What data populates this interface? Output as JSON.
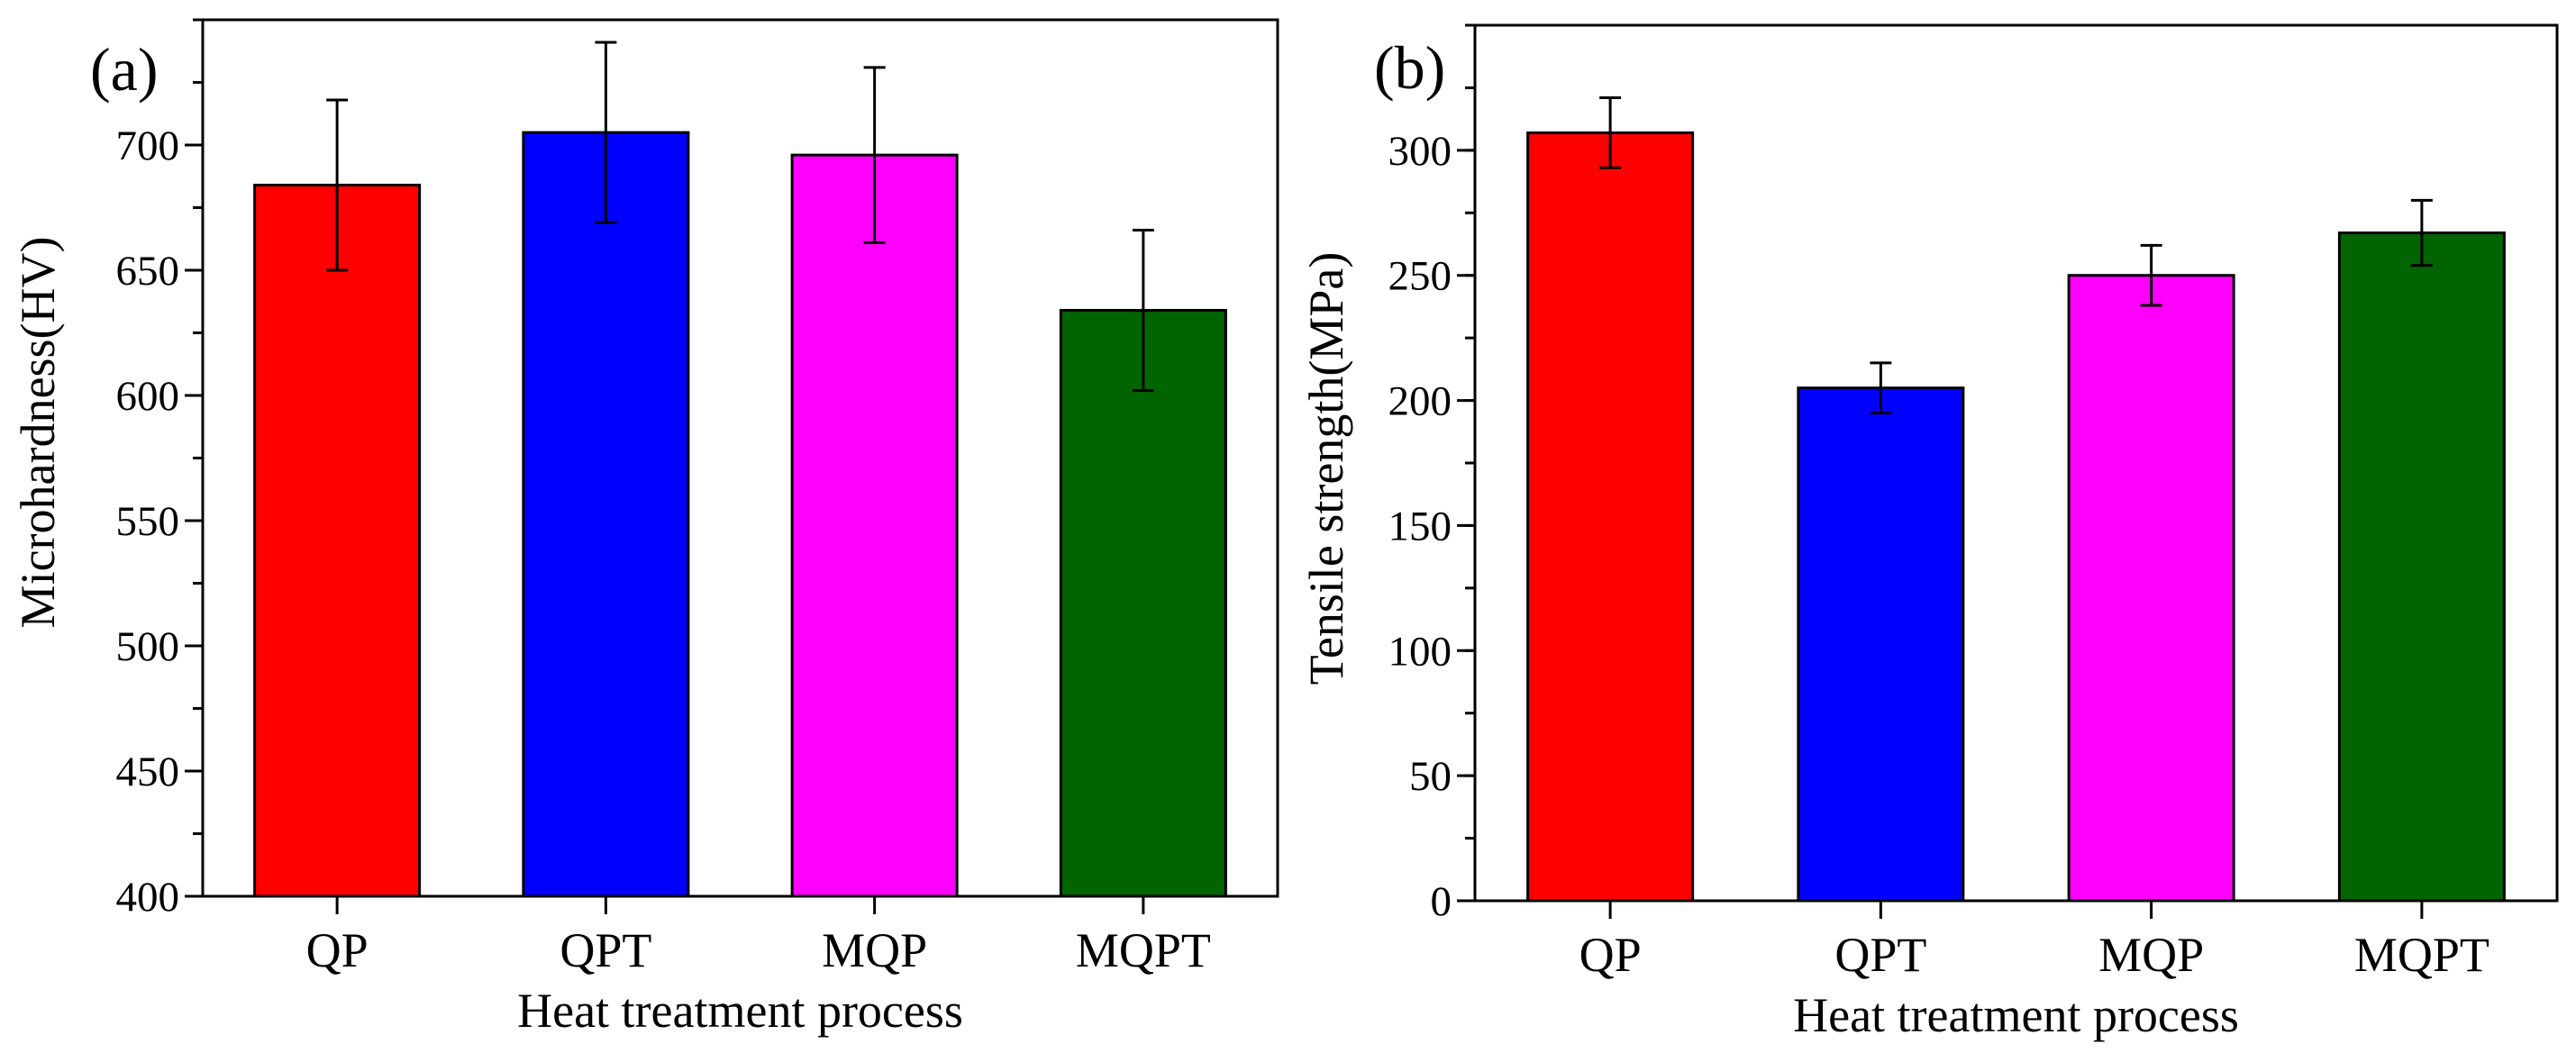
{
  "colors": {
    "QP": "#ff0000",
    "QPT": "#0000ff",
    "MQP": "#ff00ff",
    "MQPT": "#006400",
    "axis": "#000000",
    "bar_edge": "#000000",
    "background": "#ffffff"
  },
  "chart_data": [
    {
      "type": "bar",
      "panel_label": "(a)",
      "categories": [
        "QP",
        "QPT",
        "MQP",
        "MQPT"
      ],
      "values": [
        684,
        705,
        696,
        634
      ],
      "error": [
        34,
        36,
        35,
        32
      ],
      "xlabel": "Heat treatment process",
      "ylabel": "Microhardness(HV)",
      "ylim": [
        400,
        750
      ],
      "yticks": [
        400,
        450,
        500,
        550,
        600,
        650,
        700
      ],
      "ytick_labels": [
        "400",
        "450",
        "500",
        "550",
        "600",
        "650",
        "700"
      ],
      "minor_tick_step": 25,
      "grid": false,
      "legend": "none"
    },
    {
      "type": "bar",
      "panel_label": "(b)",
      "categories": [
        "QP",
        "QPT",
        "MQP",
        "MQPT"
      ],
      "values": [
        307,
        205,
        250,
        267
      ],
      "error": [
        14,
        10,
        12,
        13
      ],
      "xlabel": "Heat treatment process",
      "ylabel": "Tensile strength(MPa)",
      "ylim": [
        0,
        350
      ],
      "yticks": [
        0,
        50,
        100,
        150,
        200,
        250,
        300
      ],
      "ytick_labels": [
        "0",
        "50",
        "100",
        "150",
        "200",
        "250",
        "300"
      ],
      "minor_tick_step": 25,
      "grid": false,
      "legend": "none"
    }
  ]
}
